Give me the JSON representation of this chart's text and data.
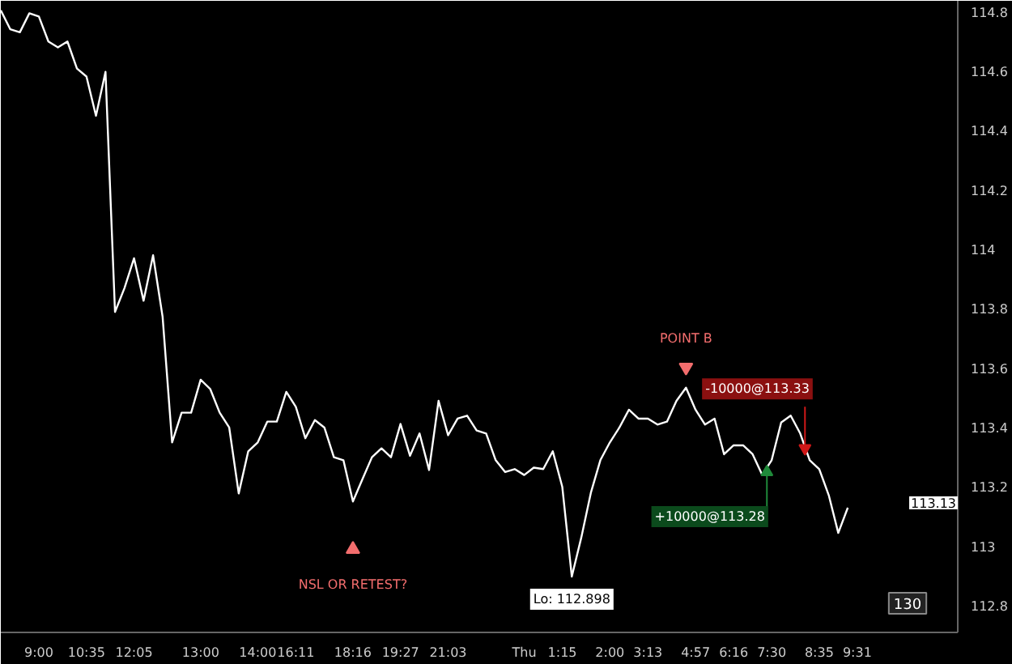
{
  "chart_data": {
    "type": "line",
    "categories": [
      null,
      null,
      null,
      null,
      "9:00",
      null,
      null,
      null,
      null,
      "10:35",
      null,
      null,
      null,
      null,
      "12:05",
      null,
      null,
      null,
      null,
      null,
      null,
      "13:00",
      null,
      null,
      null,
      null,
      null,
      "14:00",
      null,
      null,
      null,
      "16:11",
      null,
      null,
      null,
      null,
      null,
      "18:16",
      null,
      null,
      null,
      null,
      "19:27",
      null,
      null,
      null,
      null,
      "21:03",
      null,
      null,
      null,
      null,
      null,
      null,
      null,
      "Thu",
      null,
      null,
      null,
      "1:15",
      null,
      null,
      null,
      null,
      "2:00",
      null,
      null,
      null,
      "3:13",
      null,
      null,
      null,
      null,
      "4:57",
      null,
      null,
      null,
      "6:16",
      null,
      null,
      null,
      "7:30",
      null,
      null,
      null,
      null,
      "8:35",
      null,
      null,
      null,
      "9:31"
    ],
    "series": [
      {
        "color": "#ffffff",
        "values": [
          114.805,
          114.741,
          114.731,
          114.795,
          114.784,
          114.7,
          114.68,
          114.7,
          114.609,
          114.582,
          114.45,
          114.598,
          113.789,
          113.87,
          113.97,
          113.827,
          113.98,
          113.773,
          113.35,
          113.45,
          113.45,
          113.561,
          113.53,
          113.45,
          113.4,
          113.178,
          113.32,
          113.35,
          113.42,
          113.42,
          113.52,
          113.47,
          113.364,
          113.425,
          113.4,
          113.3,
          113.29,
          113.151,
          113.226,
          113.3,
          113.33,
          113.3,
          113.412,
          113.305,
          113.38,
          113.257,
          113.49,
          113.374,
          113.43,
          113.44,
          113.39,
          113.38,
          113.29,
          113.25,
          113.26,
          113.24,
          113.265,
          113.26,
          113.32,
          113.2,
          112.898,
          113.03,
          113.18,
          113.29,
          113.35,
          113.4,
          113.46,
          113.43,
          113.43,
          113.41,
          113.42,
          113.49,
          113.534,
          113.46,
          113.41,
          113.43,
          113.31,
          113.34,
          113.34,
          113.31,
          113.241,
          113.29,
          113.417,
          113.44,
          113.38,
          113.29,
          113.26,
          113.172,
          113.045,
          113.13,
          null
        ]
      }
    ],
    "ylim": [
      112.71,
      114.837
    ],
    "yticks": [
      112.8,
      113,
      113.2,
      113.4,
      113.6,
      113.8,
      114,
      114.2,
      114.4,
      114.6,
      114.8
    ],
    "grid": false,
    "annotations": [
      {
        "text": "NSL OR RETEST?",
        "x": "18:16",
        "y": 112.99
      },
      {
        "text": "POINT B",
        "y": 113.603
      },
      {
        "text": "Lo: 112.898",
        "y": 112.898
      },
      "-10000@113.33",
      "+10000@113.28",
      "113.13",
      "130"
    ]
  }
}
